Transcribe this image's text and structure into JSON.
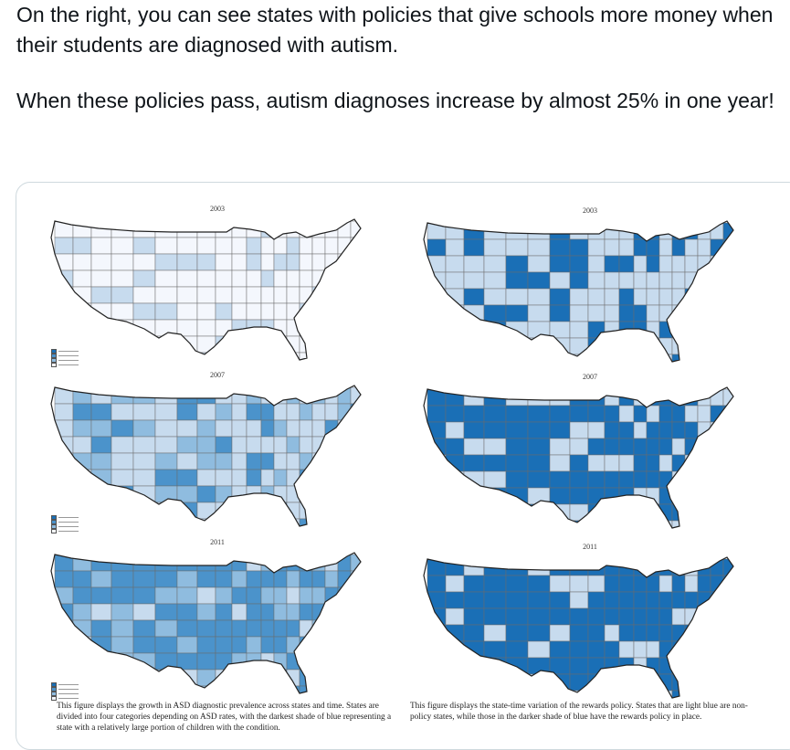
{
  "tweet": {
    "line1": "On the right, you can see states with policies that give schools more money when their students are diagnosed with autism.",
    "line2": "When these policies pass, autism diagnoses increase by almost 25% in one year!"
  },
  "figure": {
    "left_years": [
      "2003",
      "2007",
      "2011"
    ],
    "right_years": [
      "2003",
      "2007",
      "2011"
    ],
    "left_caption": "This figure displays the growth in ASD diagnostic prevalence across states and time. States are divided into four categories depending on ASD rates, with the darkest shade of blue representing a state with a relatively large portion of children with the condition.",
    "right_caption": "This figure displays the state-time variation of the rewards policy. States that are light blue are non-policy states, while those in the darker shade of blue have the rewards policy in place."
  },
  "colors": {
    "shade0": "#f4f7fd",
    "shade1": "#c7dbee",
    "shade2": "#8fbcdf",
    "shade3": "#4b93cb",
    "shade4": "#1a6fb6",
    "border": "#cfd9de"
  },
  "maps": {
    "left": [
      {
        "year": "2003",
        "counts": {
          "shade0": 62,
          "shade1": 18,
          "shade2": 0,
          "shade3": 0
        }
      },
      {
        "year": "2007",
        "counts": {
          "shade0": 0,
          "shade1": 46,
          "shade2": 20,
          "shade3": 14
        }
      },
      {
        "year": "2011",
        "counts": {
          "shade0": 0,
          "shade1": 8,
          "shade2": 26,
          "shade3": 46
        }
      }
    ],
    "right": [
      {
        "year": "2003",
        "counts": {
          "shade1": 52,
          "shade4": 28
        }
      },
      {
        "year": "2007",
        "counts": {
          "shade1": 26,
          "shade4": 54
        }
      },
      {
        "year": "2011",
        "counts": {
          "shade1": 14,
          "shade4": 66
        }
      }
    ]
  }
}
